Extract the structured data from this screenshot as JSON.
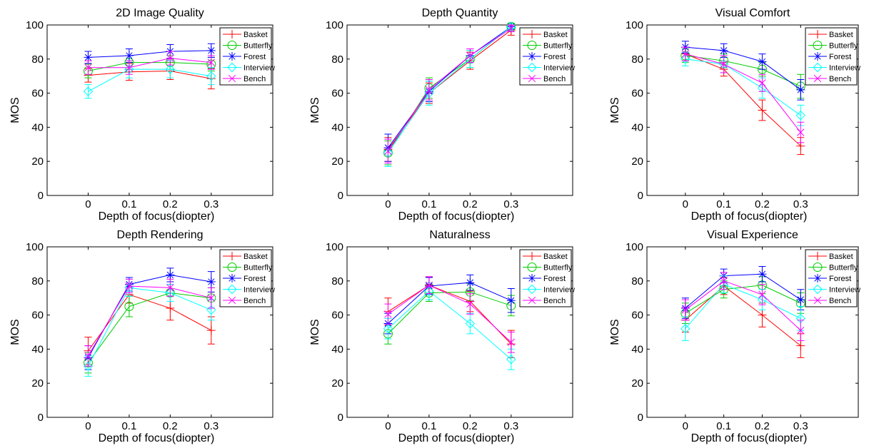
{
  "figure": {
    "colors": {
      "Basket": "#ff0000",
      "Butterfly": "#00cc00",
      "Forest": "#0000ff",
      "Interview": "#00ffff",
      "Bench": "#ff00ff"
    },
    "markers": {
      "Basket": "plus",
      "Butterfly": "circle",
      "Forest": "asterisk",
      "Interview": "diamond",
      "Bench": "x"
    }
  },
  "chart_data": [
    {
      "type": "line",
      "title": "2D Image Quality",
      "xlabel": "Depth of focus(diopter)",
      "ylabel": "MOS",
      "x": [
        0,
        0.1,
        0.2,
        0.3
      ],
      "x_tick_labels": [
        "0",
        "0.1",
        "0.2",
        "0.3"
      ],
      "y_ticks": [
        "0",
        "20",
        "40",
        "60",
        "80",
        "100"
      ],
      "xlim": [
        -0.1,
        0.45
      ],
      "ylim": [
        0,
        100
      ],
      "legend_position": "top-right",
      "series": [
        {
          "name": "Basket",
          "values": [
            70.5,
            72.5,
            73,
            68.5
          ],
          "error": [
            4,
            5,
            5,
            6
          ]
        },
        {
          "name": "Butterfly",
          "values": [
            73,
            78,
            78,
            77
          ],
          "error": [
            4,
            4,
            4,
            4
          ]
        },
        {
          "name": "Forest",
          "values": [
            81,
            82,
            84.5,
            85
          ],
          "error": [
            3.5,
            4,
            4,
            4
          ]
        },
        {
          "name": "Interview",
          "values": [
            61,
            74,
            74,
            70
          ],
          "error": [
            4,
            5,
            5,
            5
          ]
        },
        {
          "name": "Bench",
          "values": [
            75,
            75,
            80.5,
            78
          ],
          "error": [
            4,
            4,
            4,
            4
          ]
        }
      ]
    },
    {
      "type": "line",
      "title": "Depth Quantity",
      "xlabel": "Depth of focus(diopter)",
      "ylabel": "MOS",
      "x": [
        0,
        0.1,
        0.2,
        0.3
      ],
      "x_tick_labels": [
        "0",
        "0.1",
        "0.2",
        "0.3"
      ],
      "y_ticks": [
        "0",
        "20",
        "40",
        "60",
        "80",
        "100"
      ],
      "xlim": [
        -0.1,
        0.45
      ],
      "ylim": [
        0,
        100
      ],
      "legend_position": "top-right",
      "series": [
        {
          "name": "Basket",
          "values": [
            27,
            60,
            79,
            97
          ],
          "error": [
            7,
            6,
            5,
            3
          ]
        },
        {
          "name": "Butterfly",
          "values": [
            25,
            63,
            80,
            99
          ],
          "error": [
            7,
            6,
            5,
            2
          ]
        },
        {
          "name": "Forest",
          "values": [
            28,
            61,
            82,
            99
          ],
          "error": [
            8,
            6,
            4,
            1
          ]
        },
        {
          "name": "Interview",
          "values": [
            25,
            60,
            80,
            99
          ],
          "error": [
            8,
            7,
            5,
            1
          ]
        },
        {
          "name": "Bench",
          "values": [
            26,
            62,
            82,
            98
          ],
          "error": [
            7,
            6,
            4,
            2
          ]
        }
      ]
    },
    {
      "type": "line",
      "title": "Visual Comfort",
      "xlabel": "Depth of focus(diopter)",
      "ylabel": "MOS",
      "x": [
        0,
        0.1,
        0.2,
        0.3
      ],
      "x_tick_labels": [
        "0",
        "0.1",
        "0.2",
        "0.3"
      ],
      "y_ticks": [
        "0",
        "20",
        "40",
        "60",
        "80",
        "100"
      ],
      "xlim": [
        -0.1,
        0.45
      ],
      "ylim": [
        0,
        100
      ],
      "legend_position": "top-right",
      "series": [
        {
          "name": "Basket",
          "values": [
            83,
            74,
            50,
            29
          ],
          "error": [
            4,
            4,
            6,
            5
          ]
        },
        {
          "name": "Butterfly",
          "values": [
            82,
            79,
            74,
            64
          ],
          "error": [
            4,
            4,
            4,
            7
          ]
        },
        {
          "name": "Forest",
          "values": [
            87,
            85,
            78.5,
            62
          ],
          "error": [
            3.5,
            4,
            4.5,
            6
          ]
        },
        {
          "name": "Interview",
          "values": [
            80,
            77,
            63,
            47
          ],
          "error": [
            4,
            5,
            6,
            6
          ]
        },
        {
          "name": "Bench",
          "values": [
            83,
            77,
            66,
            37
          ],
          "error": [
            4,
            5,
            5,
            6
          ]
        }
      ]
    },
    {
      "type": "line",
      "title": "Depth Rendering",
      "xlabel": "Depth of focus(diopter)",
      "ylabel": "MOS",
      "x": [
        0,
        0.1,
        0.2,
        0.3
      ],
      "x_tick_labels": [
        "0",
        "0.1",
        "0.2",
        "0.3"
      ],
      "y_ticks": [
        "0",
        "20",
        "40",
        "60",
        "80",
        "100"
      ],
      "xlim": [
        -0.1,
        0.45
      ],
      "ylim": [
        0,
        100
      ],
      "legend_position": "top-right",
      "series": [
        {
          "name": "Basket",
          "values": [
            39,
            72,
            64,
            51
          ],
          "error": [
            8,
            5,
            7,
            8
          ]
        },
        {
          "name": "Butterfly",
          "values": [
            32,
            65,
            73,
            70
          ],
          "error": [
            6,
            6,
            5,
            6
          ]
        },
        {
          "name": "Forest",
          "values": [
            35,
            78,
            83.5,
            79.5
          ],
          "error": [
            7,
            4,
            4,
            6
          ]
        },
        {
          "name": "Interview",
          "values": [
            30,
            76,
            73,
            63
          ],
          "error": [
            6,
            5,
            5,
            6
          ]
        },
        {
          "name": "Bench",
          "values": [
            36,
            77,
            76,
            70
          ],
          "error": [
            6,
            4,
            5,
            6
          ]
        }
      ]
    },
    {
      "type": "line",
      "title": "Naturalness",
      "xlabel": "Depth of focus(diopter)",
      "ylabel": "MOS",
      "x": [
        0,
        0.1,
        0.2,
        0.3
      ],
      "x_tick_labels": [
        "0",
        "0.1",
        "0.2",
        "0.3"
      ],
      "y_ticks": [
        "0",
        "20",
        "40",
        "60",
        "80",
        "100"
      ],
      "xlim": [
        -0.1,
        0.45
      ],
      "ylim": [
        0,
        100
      ],
      "legend_position": "top-right",
      "series": [
        {
          "name": "Basket",
          "values": [
            62,
            77.5,
            68,
            43
          ],
          "error": [
            8,
            5,
            6,
            8
          ]
        },
        {
          "name": "Butterfly",
          "values": [
            49,
            73,
            73.5,
            65.5
          ],
          "error": [
            6,
            5,
            5,
            6
          ]
        },
        {
          "name": "Forest",
          "values": [
            55,
            77,
            79,
            68.5
          ],
          "error": [
            6,
            5,
            4.5,
            7
          ]
        },
        {
          "name": "Interview",
          "values": [
            52,
            74,
            55,
            34
          ],
          "error": [
            6,
            5,
            6,
            6
          ]
        },
        {
          "name": "Bench",
          "values": [
            60.5,
            77.5,
            66.5,
            44
          ],
          "error": [
            6,
            5,
            6,
            6
          ]
        }
      ]
    },
    {
      "type": "line",
      "title": "Visual Experience",
      "xlabel": "Depth of focus(diopter)",
      "ylabel": "MOS",
      "x": [
        0,
        0.1,
        0.2,
        0.3
      ],
      "x_tick_labels": [
        "0",
        "0.1",
        "0.2",
        "0.3"
      ],
      "y_ticks": [
        "0",
        "20",
        "40",
        "60",
        "80",
        "100"
      ],
      "xlim": [
        -0.1,
        0.45
      ],
      "ylim": [
        0,
        100
      ],
      "legend_position": "top-right",
      "series": [
        {
          "name": "Basket",
          "values": [
            57,
            77,
            60,
            42
          ],
          "error": [
            7,
            5,
            7,
            7
          ]
        },
        {
          "name": "Butterfly",
          "values": [
            61,
            75,
            77.5,
            67
          ],
          "error": [
            6,
            5,
            5,
            6
          ]
        },
        {
          "name": "Forest",
          "values": [
            64,
            83,
            84,
            69
          ],
          "error": [
            6,
            4,
            4.5,
            6
          ]
        },
        {
          "name": "Interview",
          "values": [
            52,
            78,
            69,
            58
          ],
          "error": [
            7,
            5,
            6,
            7
          ]
        },
        {
          "name": "Bench",
          "values": [
            63,
            80,
            72,
            51
          ],
          "error": [
            6,
            5,
            6,
            6
          ]
        }
      ]
    }
  ]
}
